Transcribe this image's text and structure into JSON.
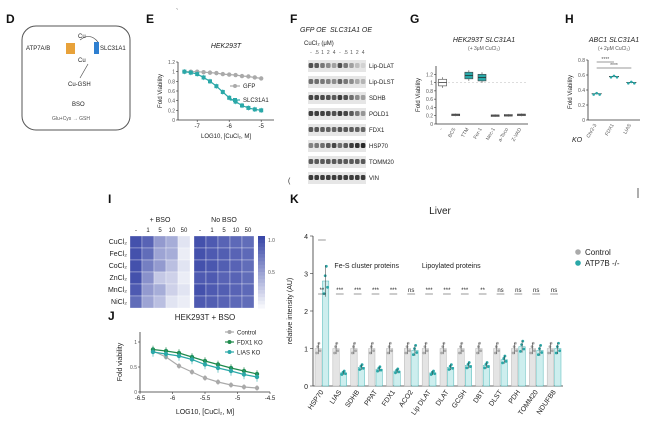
{
  "panels": {
    "D": {
      "letter": "D",
      "transporter": "ATP7A/B",
      "importer": "SLC31A1",
      "cu_top": "Cu",
      "cu_inner": "Cu",
      "cu_gsh": "Cu-GSH",
      "bso": "BSO",
      "pathway": "Glu+Cys → GSH"
    },
    "E": {
      "letter": "E",
      "tick_mark": "`"
    },
    "F": {
      "letter": "F"
    },
    "G": {
      "letter": "G"
    },
    "H": {
      "letter": "H"
    },
    "I": {
      "letter": "I"
    },
    "J": {
      "letter": "J"
    },
    "K": {
      "letter": "K"
    }
  },
  "blot": {
    "header_gfp": "GFP OE",
    "header_slc": "SLC31A1 OE",
    "dose_label": "CuCl₂ (μM)",
    "doses": [
      "-",
      ".5",
      "1",
      "2",
      "4",
      "-",
      ".5",
      "1",
      "2",
      "4"
    ],
    "rows": [
      "Lip-DLAT",
      "Lip-DLST",
      "SDHB",
      "POLD1",
      "FDX1",
      "HSP70",
      "TOMM20",
      "VIN"
    ],
    "side_mark": "("
  },
  "heatmap_legend_ticks": [
    "1.0",
    "0.5"
  ],
  "chart_data": [
    {
      "id": "E",
      "type": "line",
      "title": "HEK293T",
      "xlabel": "LOG10, [CuCl₂, M]",
      "ylabel": "Fold Viability",
      "xlim": [
        -7.6,
        -4.6
      ],
      "ylim": [
        0,
        1.2
      ],
      "xticks": [
        -7,
        -6,
        -5
      ],
      "yticks": [
        0,
        0.2,
        0.4,
        0.6,
        0.8,
        1.0,
        1.2
      ],
      "series": [
        {
          "name": "GFP",
          "color": "#aaaaaa",
          "x": [
            -7.4,
            -7.2,
            -7.0,
            -6.8,
            -6.6,
            -6.4,
            -6.2,
            -6.0,
            -5.8,
            -5.6,
            -5.4,
            -5.2,
            -5.0
          ],
          "y": [
            1.0,
            1.0,
            1.0,
            0.99,
            0.98,
            0.97,
            0.95,
            0.94,
            0.93,
            0.91,
            0.9,
            0.88,
            0.86
          ]
        },
        {
          "name": "SLC31A1",
          "color": "#2aa8a8",
          "x": [
            -7.4,
            -7.2,
            -7.0,
            -6.8,
            -6.6,
            -6.4,
            -6.2,
            -6.0,
            -5.8,
            -5.6,
            -5.4,
            -5.2,
            -5.0
          ],
          "y": [
            1.0,
            0.98,
            0.95,
            0.88,
            0.8,
            0.7,
            0.58,
            0.46,
            0.38,
            0.3,
            0.25,
            0.22,
            0.2
          ]
        }
      ]
    },
    {
      "id": "G",
      "type": "box",
      "title": "HEK293T SLC31A1",
      "subtitle": "(+ 3μM CuCl₂)",
      "ylabel": "Fold Viability",
      "ylim": [
        0,
        1.4
      ],
      "yticks": [
        0,
        0.2,
        0.4,
        0.6,
        0.8,
        1.0,
        1.2
      ],
      "categories": [
        "-",
        "BCS",
        "TTM",
        "Fer-1",
        "Nec-1",
        "a-Toco",
        "Z-VAD"
      ],
      "values": [
        1.0,
        0.22,
        1.17,
        1.12,
        0.2,
        0.21,
        0.22
      ],
      "colors": [
        "#ffffff",
        "#dddddd",
        "#2aa8a8",
        "#2aa8a8",
        "#dddddd",
        "#dddddd",
        "#dddddd"
      ]
    },
    {
      "id": "H",
      "type": "scatter",
      "title": "ABC1 SLC31A1",
      "subtitle": "(+ 2μM CuCl₂)",
      "ylabel": "Fold Viability",
      "xgroup_label": "KO",
      "ylim": [
        0,
        0.8
      ],
      "yticks": [
        0,
        0.2,
        0.4,
        0.6,
        0.8
      ],
      "categories": [
        "Chr2-3",
        "FDX1",
        "LIAS"
      ],
      "values": [
        0.35,
        0.58,
        0.5
      ],
      "sig": [
        "****",
        "****"
      ]
    },
    {
      "id": "I",
      "type": "heatmap",
      "groups": [
        "+ BSO",
        "No BSO"
      ],
      "col_labels": [
        "-",
        "1",
        "5",
        "10",
        "50"
      ],
      "rows": [
        "CuCl₂",
        "FeCl₂",
        "CoCl₂",
        "ZnCl₂",
        "MnCl₂",
        "NiCl₂"
      ],
      "values": [
        [
          [
            0.95,
            0.85,
            0.55,
            0.45,
            0.15
          ],
          [
            0.95,
            0.9,
            0.85,
            0.82,
            0.8
          ]
        ],
        [
          [
            0.95,
            0.8,
            0.5,
            0.45,
            0.1
          ],
          [
            0.95,
            0.9,
            0.88,
            0.85,
            0.82
          ]
        ],
        [
          [
            0.95,
            0.7,
            0.55,
            0.35,
            0.15
          ],
          [
            0.95,
            0.92,
            0.88,
            0.85,
            0.8
          ]
        ],
        [
          [
            0.95,
            0.6,
            0.3,
            0.25,
            0.1
          ],
          [
            0.9,
            0.9,
            0.85,
            0.85,
            0.8
          ]
        ],
        [
          [
            0.9,
            0.55,
            0.45,
            0.25,
            0.15
          ],
          [
            0.95,
            0.9,
            0.88,
            0.85,
            0.82
          ]
        ],
        [
          [
            0.8,
            0.5,
            0.35,
            0.15,
            0.1
          ],
          [
            0.9,
            0.88,
            0.85,
            0.82,
            0.8
          ]
        ]
      ],
      "scale": [
        0,
        1.0
      ]
    },
    {
      "id": "J",
      "type": "line",
      "title": "HEK293T + BSO",
      "xlabel": "LOG10, [CuCl₂, M]",
      "ylabel": "Fold viability",
      "xlim": [
        -6.5,
        -4.5
      ],
      "ylim": [
        0,
        1.2
      ],
      "xticks": [
        -6.5,
        -6.0,
        -5.5,
        -5.0,
        -4.5
      ],
      "yticks": [
        0,
        0.5,
        1.0
      ],
      "series": [
        {
          "name": "Control",
          "color": "#aaaaaa",
          "x": [
            -6.3,
            -6.1,
            -5.9,
            -5.7,
            -5.5,
            -5.3,
            -5.1,
            -4.9,
            -4.7
          ],
          "y": [
            0.82,
            0.7,
            0.52,
            0.4,
            0.28,
            0.2,
            0.14,
            0.1,
            0.08
          ]
        },
        {
          "name": "FDX1 KO",
          "color": "#1f8a4c",
          "x": [
            -6.3,
            -6.1,
            -5.9,
            -5.7,
            -5.5,
            -5.3,
            -5.1,
            -4.9,
            -4.7
          ],
          "y": [
            0.85,
            0.82,
            0.78,
            0.7,
            0.62,
            0.55,
            0.48,
            0.42,
            0.36
          ]
        },
        {
          "name": "LIAS KO",
          "color": "#2aa8a8",
          "x": [
            -6.3,
            -6.1,
            -5.9,
            -5.7,
            -5.5,
            -5.3,
            -5.1,
            -4.9,
            -4.7
          ],
          "y": [
            0.8,
            0.76,
            0.72,
            0.65,
            0.55,
            0.48,
            0.42,
            0.35,
            0.3
          ]
        }
      ]
    },
    {
      "id": "K",
      "type": "bar",
      "title": "Liver",
      "ylabel": "relative intensity (AU)",
      "ylim": [
        0,
        4
      ],
      "yticks": [
        0,
        1,
        2,
        3,
        4
      ],
      "categories": [
        "HSP70",
        "LIAS",
        "SDHB",
        "PPAT",
        "FDX1",
        "ACO2",
        "Lip DLAT",
        "DLAT",
        "GCSH",
        "DBT",
        "DLST",
        "PDH",
        "TOMM20",
        "NDUFB8"
      ],
      "series": [
        {
          "name": "Control",
          "color": "#aaaaaa",
          "values": [
            1.0,
            1.0,
            1.0,
            1.0,
            1.0,
            1.0,
            1.0,
            1.0,
            1.0,
            1.0,
            1.0,
            1.0,
            1.0,
            1.0
          ]
        },
        {
          "name": "ATP7B -/-",
          "color": "#2aa8a8",
          "values": [
            2.8,
            0.35,
            0.5,
            0.45,
            0.4,
            0.95,
            0.35,
            0.5,
            0.55,
            0.55,
            0.7,
            1.05,
            0.95,
            1.0
          ]
        }
      ],
      "sig": [
        "**",
        "***",
        "***",
        "***",
        "***",
        "ns",
        "***",
        "***",
        "***",
        "**",
        "ns",
        "ns",
        "ns",
        "ns"
      ],
      "group_labels": [
        "Fe-S cluster proteins",
        "Lipoylated proteins"
      ]
    }
  ]
}
